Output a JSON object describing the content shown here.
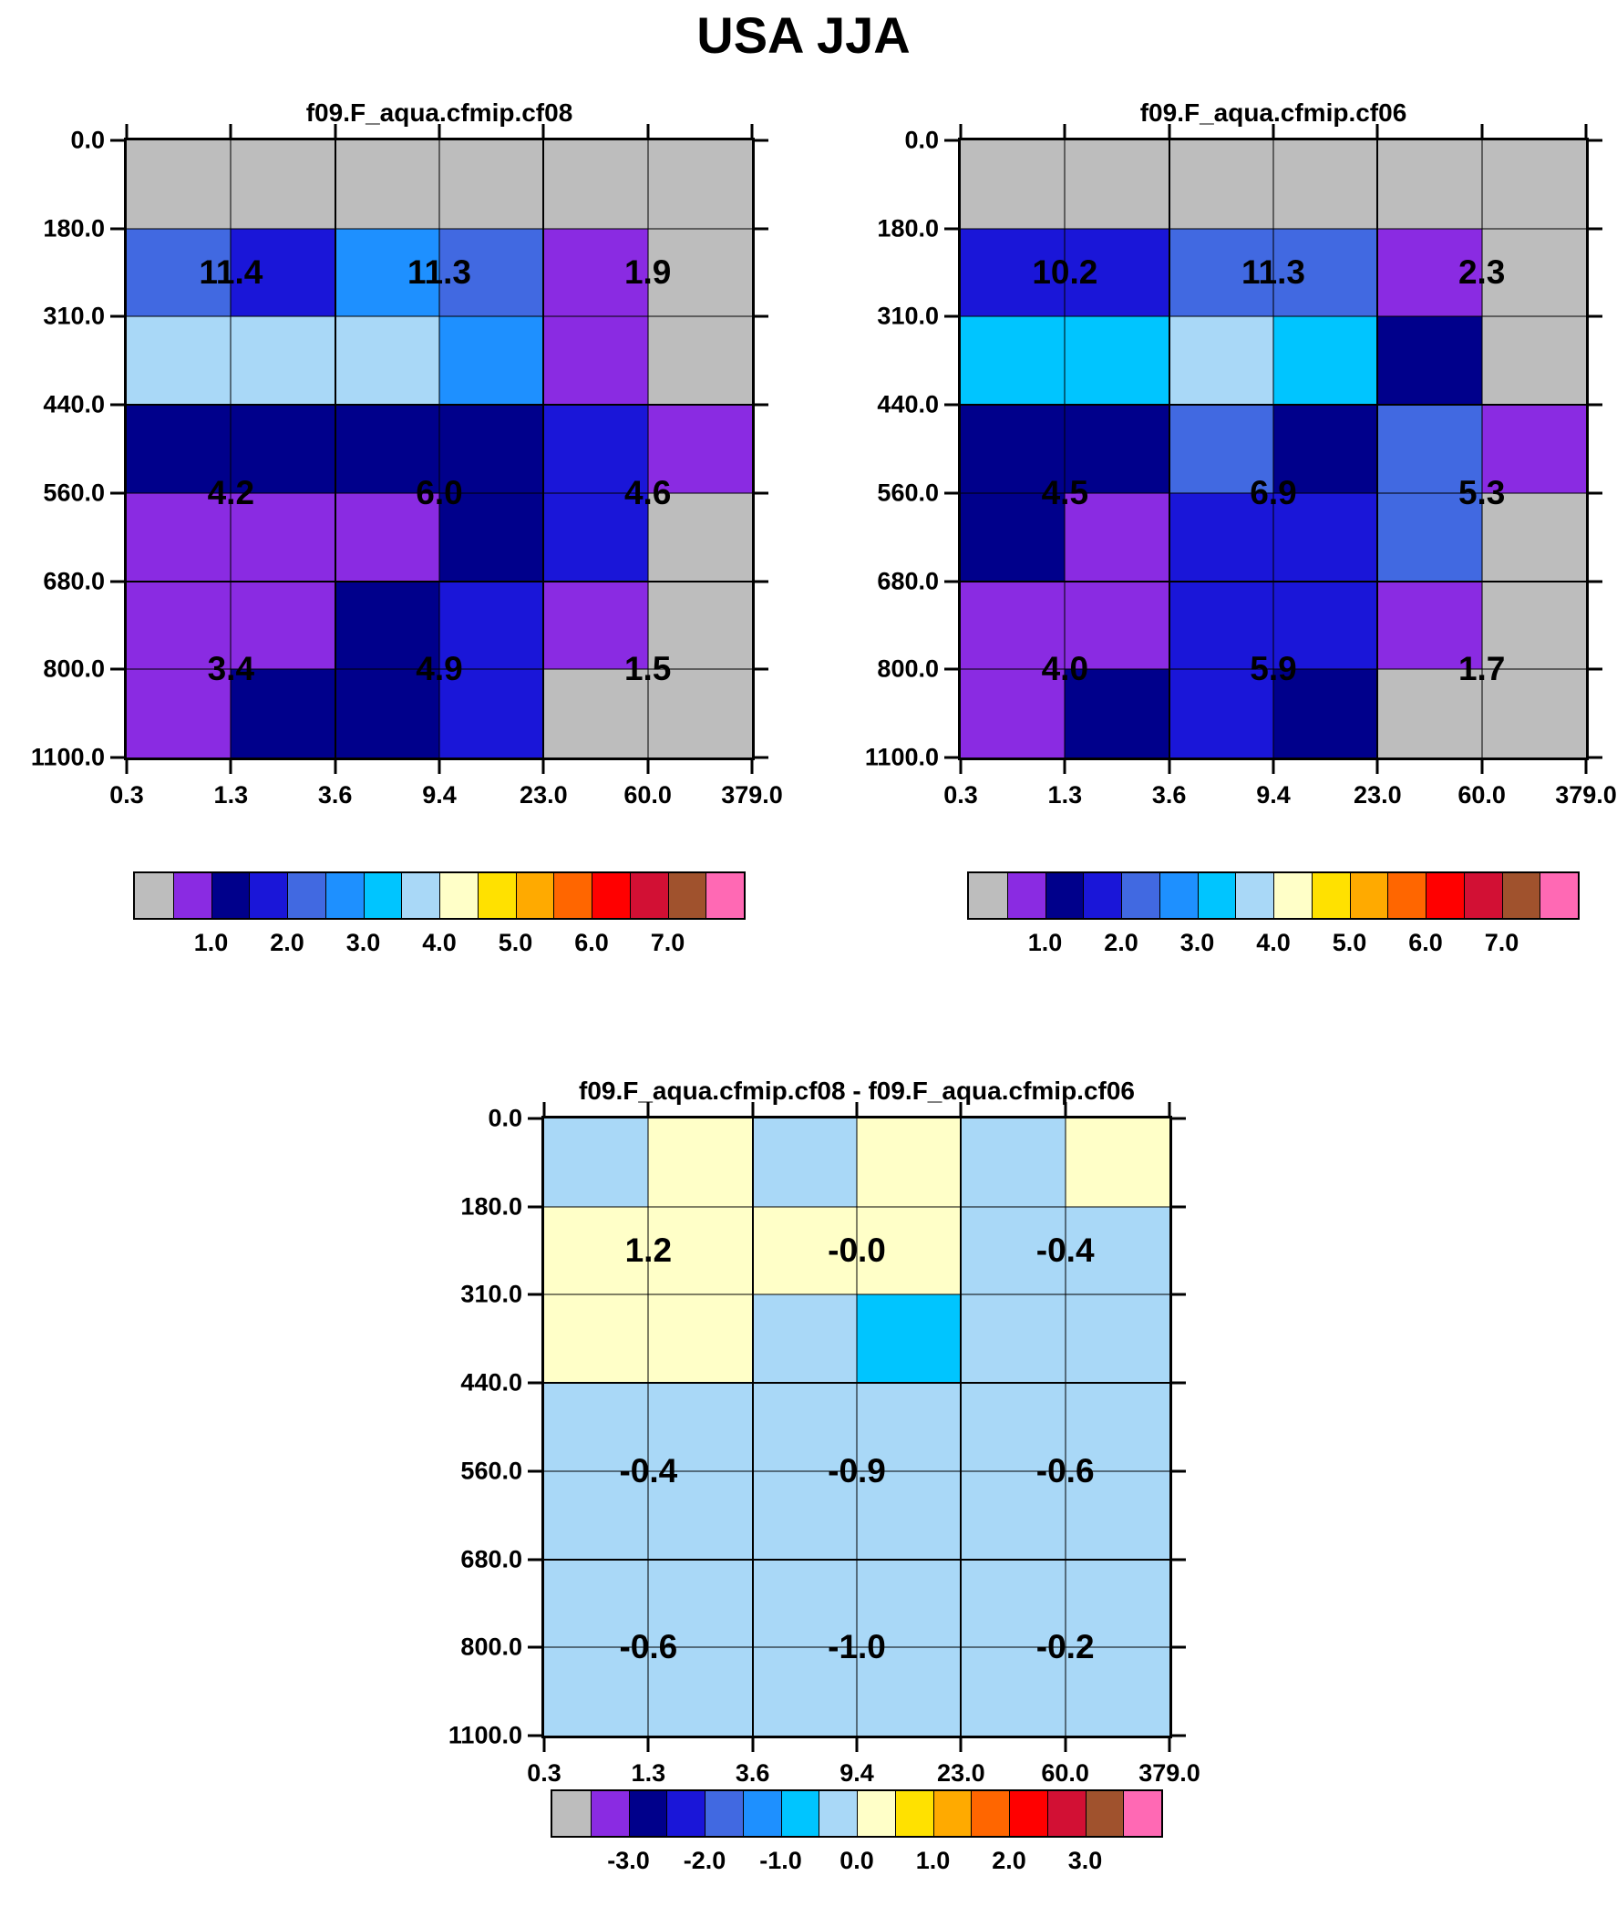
{
  "page_title": "USA JJA",
  "palette": [
    "#bdbdbd",
    "#8a2be2",
    "#00008b",
    "#1a16d8",
    "#4169e1",
    "#1e90ff",
    "#00c5ff",
    "#a9d8f7",
    "#ffffc8",
    "#ffe100",
    "#ffaa00",
    "#ff6600",
    "#ff0000",
    "#d21034",
    "#a0522d",
    "#ff69b4"
  ],
  "chart_data": [
    {
      "type": "heatmap",
      "title": "f09.F_aqua.cfmip.cf08",
      "x_tick_labels": [
        "0.3",
        "1.3",
        "3.6",
        "9.4",
        "23.0",
        "60.0",
        "379.0"
      ],
      "y_tick_labels": [
        "0.0",
        "180.0",
        "310.0",
        "440.0",
        "560.0",
        "680.0",
        "800.0",
        "1100.0"
      ],
      "x_bin_edges": [
        0.3,
        1.3,
        3.6,
        9.4,
        23.0,
        60.0,
        379.0
      ],
      "y_bin_edges": [
        0.0,
        180.0,
        310.0,
        440.0,
        560.0,
        680.0,
        800.0,
        1100.0
      ],
      "grid_color_index": [
        [
          0,
          0,
          0,
          0,
          0,
          0
        ],
        [
          4,
          3,
          5,
          4,
          1,
          0
        ],
        [
          7,
          7,
          7,
          5,
          1,
          0
        ],
        [
          2,
          2,
          2,
          2,
          3,
          1
        ],
        [
          1,
          1,
          1,
          2,
          3,
          0
        ],
        [
          1,
          1,
          2,
          3,
          1,
          0
        ],
        [
          1,
          2,
          2,
          3,
          0,
          0
        ]
      ],
      "block_col_edges": [
        0,
        2,
        4,
        6
      ],
      "block_row_edges": [
        0,
        3,
        5,
        7
      ],
      "block_labels": [
        [
          "11.4",
          "11.3",
          "1.9"
        ],
        [
          "4.2",
          "6.0",
          "4.6"
        ],
        [
          "3.4",
          "4.9",
          "1.5"
        ]
      ],
      "block_values": [
        [
          11.4,
          11.3,
          1.9
        ],
        [
          4.2,
          6.0,
          4.6
        ],
        [
          3.4,
          4.9,
          1.5
        ]
      ],
      "colorbar_labels": [
        "1.0",
        "2.0",
        "3.0",
        "4.0",
        "5.0",
        "6.0",
        "7.0"
      ]
    },
    {
      "type": "heatmap",
      "title": "f09.F_aqua.cfmip.cf06",
      "x_tick_labels": [
        "0.3",
        "1.3",
        "3.6",
        "9.4",
        "23.0",
        "60.0",
        "379.0"
      ],
      "y_tick_labels": [
        "0.0",
        "180.0",
        "310.0",
        "440.0",
        "560.0",
        "680.0",
        "800.0",
        "1100.0"
      ],
      "x_bin_edges": [
        0.3,
        1.3,
        3.6,
        9.4,
        23.0,
        60.0,
        379.0
      ],
      "y_bin_edges": [
        0.0,
        180.0,
        310.0,
        440.0,
        560.0,
        680.0,
        800.0,
        1100.0
      ],
      "grid_color_index": [
        [
          0,
          0,
          0,
          0,
          0,
          0
        ],
        [
          3,
          3,
          4,
          4,
          1,
          0
        ],
        [
          6,
          6,
          7,
          6,
          2,
          0
        ],
        [
          2,
          2,
          4,
          2,
          4,
          1
        ],
        [
          2,
          1,
          3,
          3,
          4,
          0
        ],
        [
          1,
          1,
          3,
          3,
          1,
          0
        ],
        [
          1,
          2,
          3,
          2,
          0,
          0
        ]
      ],
      "block_col_edges": [
        0,
        2,
        4,
        6
      ],
      "block_row_edges": [
        0,
        3,
        5,
        7
      ],
      "block_labels": [
        [
          "10.2",
          "11.3",
          "2.3"
        ],
        [
          "4.5",
          "6.9",
          "5.3"
        ],
        [
          "4.0",
          "5.9",
          "1.7"
        ]
      ],
      "block_values": [
        [
          10.2,
          11.3,
          2.3
        ],
        [
          4.5,
          6.9,
          5.3
        ],
        [
          4.0,
          5.9,
          1.7
        ]
      ],
      "colorbar_labels": [
        "1.0",
        "2.0",
        "3.0",
        "4.0",
        "5.0",
        "6.0",
        "7.0"
      ]
    },
    {
      "type": "heatmap",
      "title": "f09.F_aqua.cfmip.cf08 - f09.F_aqua.cfmip.cf06",
      "x_tick_labels": [
        "0.3",
        "1.3",
        "3.6",
        "9.4",
        "23.0",
        "60.0",
        "379.0"
      ],
      "y_tick_labels": [
        "0.0",
        "180.0",
        "310.0",
        "440.0",
        "560.0",
        "680.0",
        "800.0",
        "1100.0"
      ],
      "x_bin_edges": [
        0.3,
        1.3,
        3.6,
        9.4,
        23.0,
        60.0,
        379.0
      ],
      "y_bin_edges": [
        0.0,
        180.0,
        310.0,
        440.0,
        560.0,
        680.0,
        800.0,
        1100.0
      ],
      "grid_color_index": [
        [
          7,
          8,
          7,
          8,
          7,
          8
        ],
        [
          8,
          8,
          8,
          8,
          7,
          7
        ],
        [
          8,
          8,
          7,
          6,
          7,
          7
        ],
        [
          7,
          7,
          7,
          7,
          7,
          7
        ],
        [
          7,
          7,
          7,
          7,
          7,
          7
        ],
        [
          7,
          7,
          7,
          7,
          7,
          7
        ],
        [
          7,
          7,
          7,
          7,
          7,
          7
        ]
      ],
      "block_col_edges": [
        0,
        2,
        4,
        6
      ],
      "block_row_edges": [
        0,
        3,
        5,
        7
      ],
      "block_labels": [
        [
          "1.2",
          "-0.0",
          "-0.4"
        ],
        [
          "-0.4",
          "-0.9",
          "-0.6"
        ],
        [
          "-0.6",
          "-1.0",
          "-0.2"
        ]
      ],
      "block_values": [
        [
          1.2,
          -0.0,
          -0.4
        ],
        [
          -0.4,
          -0.9,
          -0.6
        ],
        [
          -0.6,
          -1.0,
          -0.2
        ]
      ],
      "colorbar_labels": [
        "-3.0",
        "-2.0",
        "-1.0",
        "0.0",
        "1.0",
        "2.0",
        "3.0"
      ]
    }
  ]
}
